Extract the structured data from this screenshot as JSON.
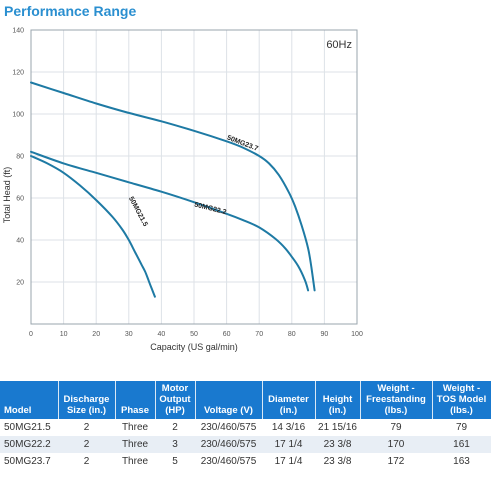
{
  "page_title": "Performance Range",
  "chart_data": {
    "type": "line",
    "title": "",
    "xlabel": "Capacity (US gal/min)",
    "ylabel": "Total Head (ft)",
    "annotation": "60Hz",
    "xlim": [
      0,
      100
    ],
    "ylim": [
      0,
      140
    ],
    "x_ticks": [
      0,
      10,
      20,
      30,
      40,
      50,
      60,
      70,
      80,
      90,
      100
    ],
    "y_ticks": [
      20,
      40,
      60,
      80,
      100,
      120,
      140
    ],
    "grid": true,
    "series": [
      {
        "name": "50MG21.5",
        "x": [
          0,
          5,
          10,
          15,
          20,
          25,
          28,
          30,
          32,
          34,
          35,
          36,
          37,
          38
        ],
        "y": [
          80,
          76.5,
          72,
          66,
          59,
          51,
          45,
          40,
          34,
          28,
          25,
          21,
          17,
          13
        ]
      },
      {
        "name": "50MG22.2",
        "x": [
          0,
          10,
          20,
          30,
          40,
          50,
          60,
          65,
          70,
          75,
          78,
          80,
          82,
          84,
          85
        ],
        "y": [
          82,
          76.5,
          72,
          67.5,
          63,
          58,
          52.5,
          49.5,
          46,
          40.5,
          36,
          32,
          27.5,
          21,
          16
        ]
      },
      {
        "name": "50MG23.7",
        "x": [
          0,
          10,
          20,
          30,
          40,
          50,
          60,
          65,
          70,
          73,
          76,
          79,
          81,
          83,
          85,
          86,
          87
        ],
        "y": [
          115,
          110,
          105,
          100.5,
          96.5,
          92,
          87,
          84,
          80,
          76.5,
          71,
          63,
          56,
          47,
          36,
          27,
          16
        ]
      }
    ],
    "series_color": "#1e7aa4"
  },
  "table": {
    "headers": [
      "Model",
      "Discharge Size (in.)",
      "Phase",
      "Motor Output (HP)",
      "Voltage (V)",
      "Diameter (in.)",
      "Height (in.)",
      "Weight - Freestanding (lbs.)",
      "Weight - TOS Model (lbs.)"
    ],
    "rows": [
      [
        "50MG21.5",
        "2",
        "Three",
        "2",
        "230/460/575",
        "14 3/16",
        "21 15/16",
        "79",
        "79"
      ],
      [
        "50MG22.2",
        "2",
        "Three",
        "3",
        "230/460/575",
        "17 1/4",
        "23 3/8",
        "170",
        "161"
      ],
      [
        "50MG23.7",
        "2",
        "Three",
        "5",
        "230/460/575",
        "17 1/4",
        "23 3/8",
        "172",
        "163"
      ]
    ]
  }
}
